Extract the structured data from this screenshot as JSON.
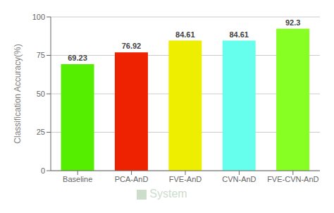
{
  "chart_data": {
    "type": "bar",
    "categories": [
      "Baseline",
      "PCA-AnD",
      "FVE-AnD",
      "CVN-AnD",
      "FVE-CVN-AnD"
    ],
    "series": [
      {
        "name": "System",
        "color": "#ccddcc",
        "colors": [
          "#55ee00",
          "#ee2200",
          "#eeee00",
          "#66ffee",
          "#88ff22"
        ],
        "values": [
          69.23,
          76.92,
          84.61,
          84.61,
          92.3
        ]
      }
    ],
    "ylabel": "Classification Accuracy(%)",
    "ylim": [
      0,
      100
    ],
    "yticks": [
      0,
      25,
      50,
      75,
      100
    ],
    "grid": true,
    "legend": "bottom",
    "data_labels": true
  }
}
